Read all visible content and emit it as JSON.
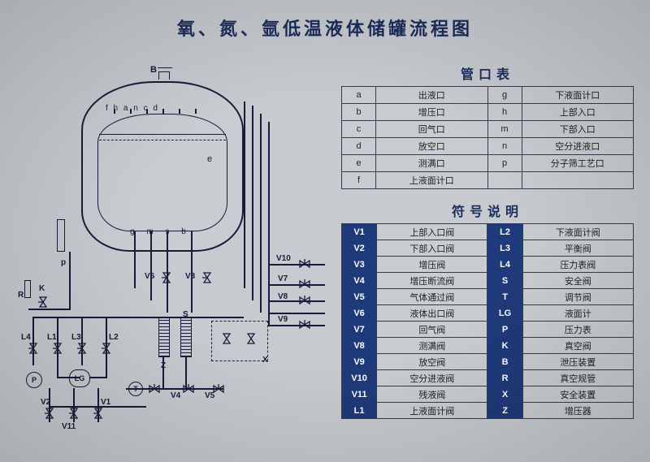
{
  "title": "氧、氮、氩低温液体储罐流程图",
  "colors": {
    "bg": "#c7cbd0",
    "ink": "#1a1a3a",
    "heading": "#1c2c5b",
    "codeBg": "#1f3a7a",
    "codeFg": "#ffffff"
  },
  "diagram": {
    "top_label": "B",
    "top_ports": "f  h  a n c  d",
    "right_port": "e",
    "bottom_ports": "g m s    b",
    "side_port": "p",
    "left_labels": {
      "R": "R",
      "K": "K"
    },
    "valves": [
      "V1",
      "V2",
      "V3",
      "V4",
      "V5",
      "V6",
      "V7",
      "V8",
      "V9",
      "V10",
      "V11"
    ],
    "bottom_labels": {
      "L4": "L4",
      "L1": "L1",
      "L3": "L3",
      "L2": "L2",
      "V2": "V2",
      "P": "P",
      "LG": "LG",
      "T": "T",
      "V4": "V4",
      "V5": "V5",
      "Z": "Z",
      "S": "S",
      "X": "X"
    }
  },
  "portsTable": {
    "title": "管口表",
    "rows": [
      [
        "a",
        "出液口",
        "g",
        "下液面计口"
      ],
      [
        "b",
        "增压口",
        "h",
        "上部入口"
      ],
      [
        "c",
        "回气口",
        "m",
        "下部入口"
      ],
      [
        "d",
        "放空口",
        "n",
        "空分进液口"
      ],
      [
        "e",
        "测满口",
        "p",
        "分子筛工艺口"
      ],
      [
        "f",
        "上液面计口",
        "",
        ""
      ]
    ]
  },
  "symbolsTable": {
    "title": "符号说明",
    "rows": [
      [
        "V1",
        "上部入口阀",
        "L2",
        "下液面计阀"
      ],
      [
        "V2",
        "下部入口阀",
        "L3",
        "平衡阀"
      ],
      [
        "V3",
        "增压阀",
        "L4",
        "压力表阀"
      ],
      [
        "V4",
        "增压断流阀",
        "S",
        "安全阀"
      ],
      [
        "V5",
        "气体通过阀",
        "T",
        "调节阀"
      ],
      [
        "V6",
        "液体出口阀",
        "LG",
        "液面计"
      ],
      [
        "V7",
        "回气阀",
        "P",
        "压力表"
      ],
      [
        "V8",
        "测满阀",
        "K",
        "真空阀"
      ],
      [
        "V9",
        "放空阀",
        "B",
        "泄压装置"
      ],
      [
        "V10",
        "空分进液阀",
        "R",
        "真空规管"
      ],
      [
        "V11",
        "残液阀",
        "X",
        "安全装置"
      ],
      [
        "L1",
        "上液面计阀",
        "Z",
        "增压器"
      ]
    ]
  }
}
